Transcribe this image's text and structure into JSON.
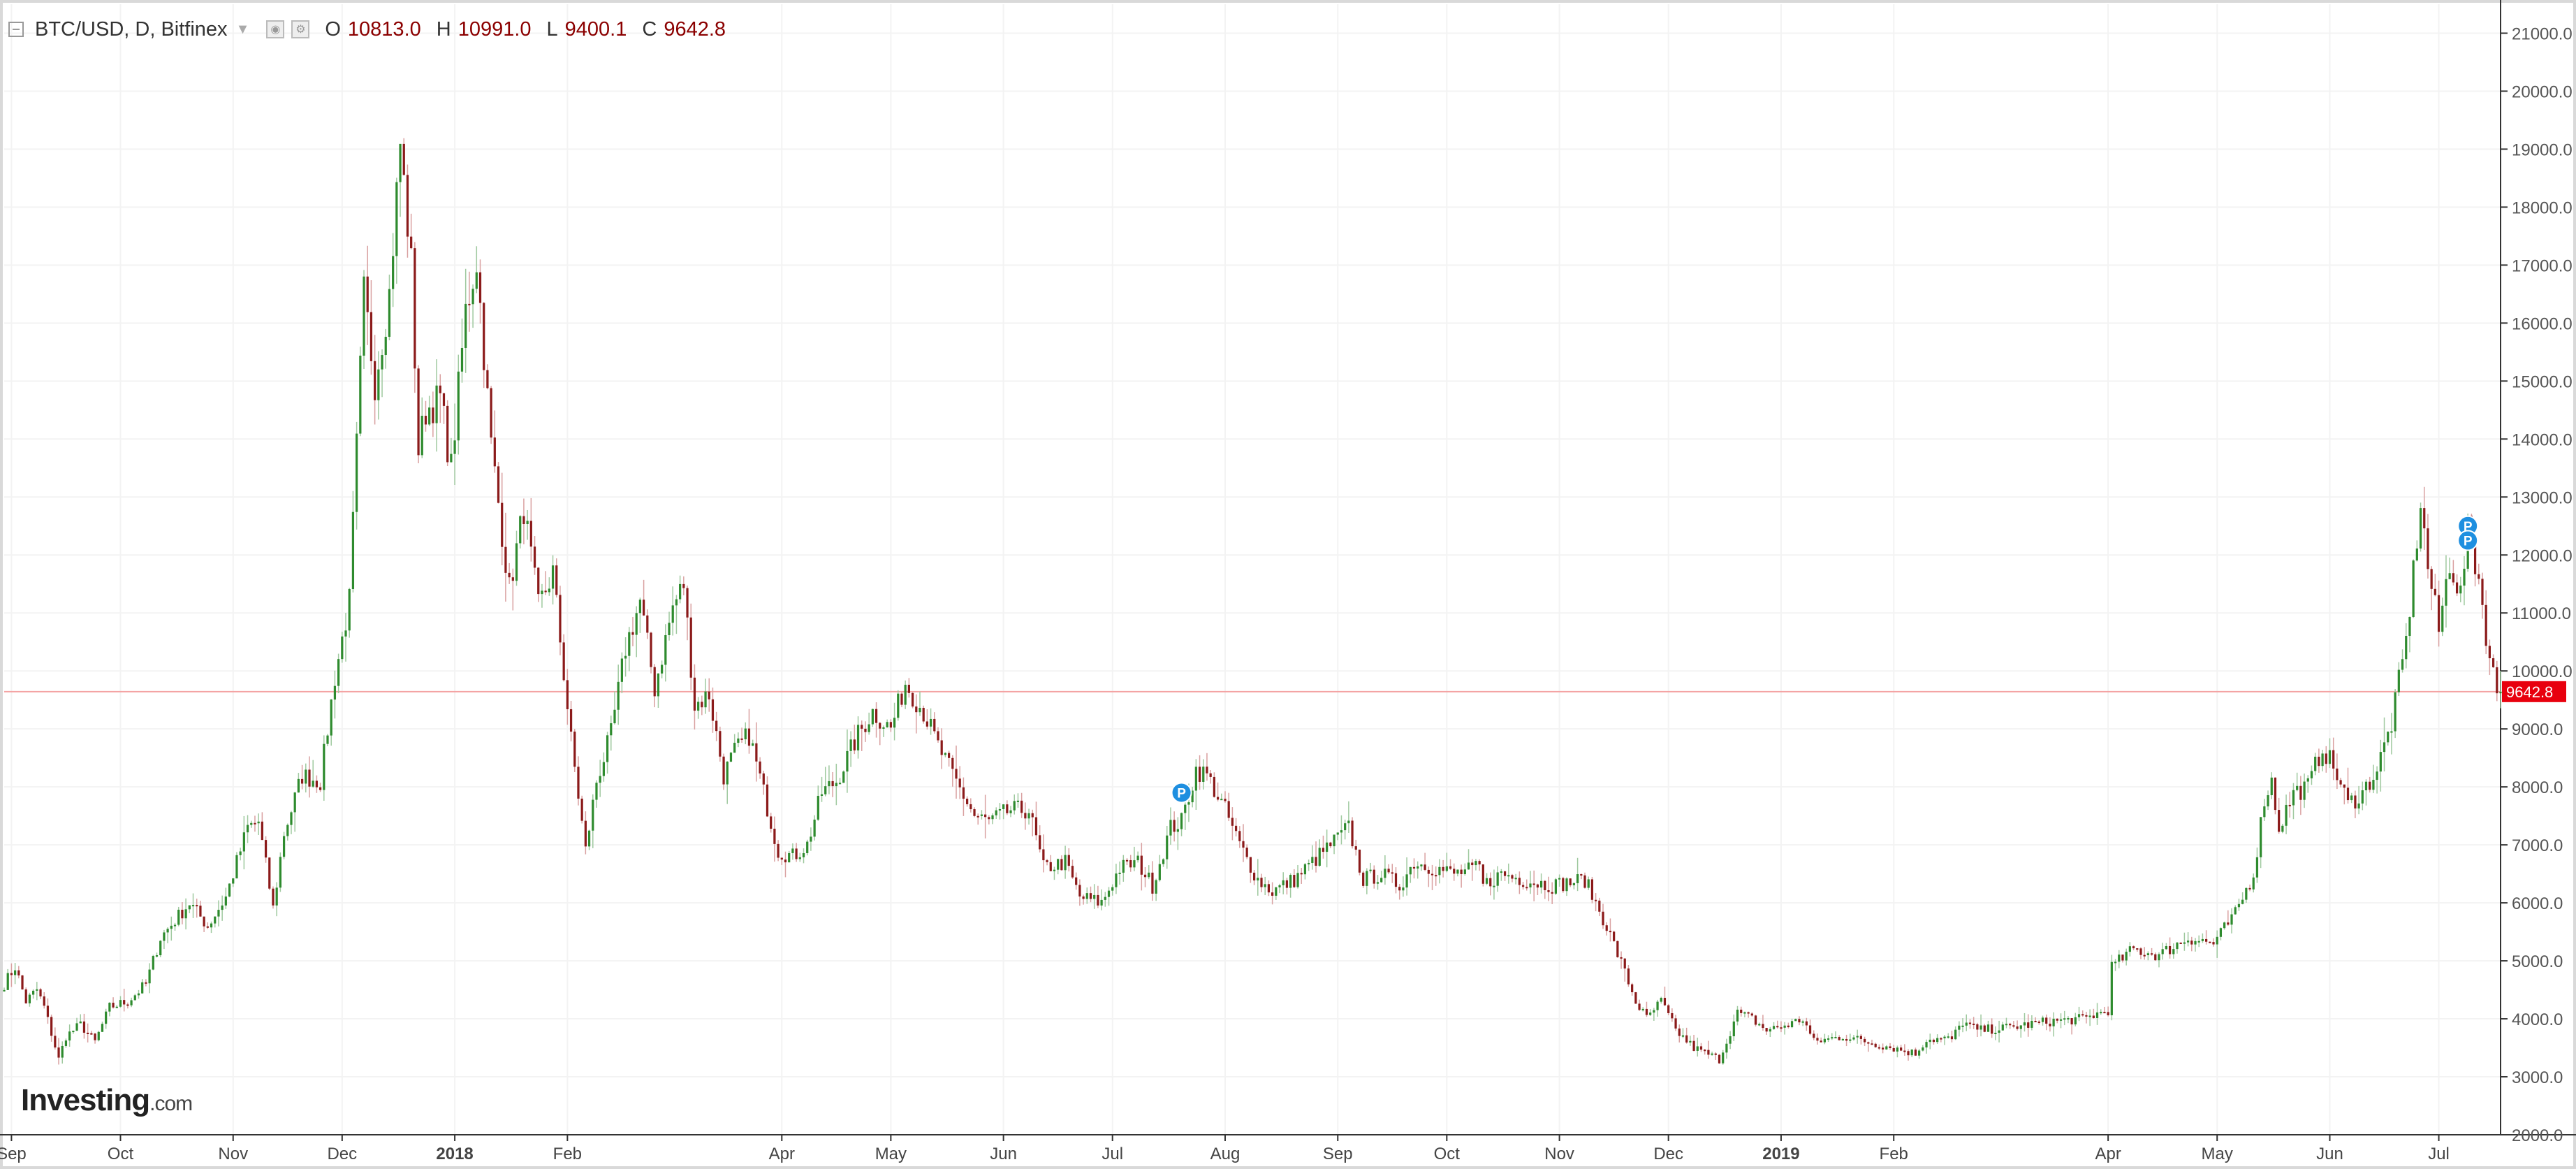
{
  "header": {
    "symbol": "BTC/USD, D, Bitfinex",
    "open_key": "O",
    "open": "10813.0",
    "high_key": "H",
    "high": "10991.0",
    "low_key": "L",
    "low": "9400.1",
    "close_key": "C",
    "close": "9642.8"
  },
  "logo": {
    "brand": "Investing",
    "suffix": ".com"
  },
  "colors": {
    "up": "#2e8b2e",
    "down": "#8b1a1a",
    "price_line": "#f4a3a3",
    "price_label_bg": "#e8000e",
    "grid": "#f3f3f3",
    "axis": "#555555",
    "marker": "#1e8fe0"
  },
  "chart_data": {
    "type": "candlestick",
    "title": "BTC/USD, D, Bitfinex",
    "ylim": [
      2000,
      21500
    ],
    "y_ticks": [
      "2000.0",
      "3000.0",
      "4000.0",
      "5000.0",
      "6000.0",
      "7000.0",
      "8000.0",
      "9000.0",
      "10000.0",
      "11000.0",
      "12000.0",
      "13000.0",
      "14000.0",
      "15000.0",
      "16000.0",
      "17000.0",
      "18000.0",
      "19000.0",
      "20000.0",
      "21000.0"
    ],
    "x_ticks": [
      {
        "label": "Sep",
        "x": "2017-09-01",
        "bold": false
      },
      {
        "label": "Oct",
        "x": "2017-10-01",
        "bold": false
      },
      {
        "label": "Nov",
        "x": "2017-11-01",
        "bold": false
      },
      {
        "label": "Dec",
        "x": "2017-12-01",
        "bold": false
      },
      {
        "label": "2018",
        "x": "2018-01-01",
        "bold": true
      },
      {
        "label": "Feb",
        "x": "2018-02-01",
        "bold": false
      },
      {
        "label": "Apr",
        "x": "2018-04-01",
        "bold": false
      },
      {
        "label": "May",
        "x": "2018-05-01",
        "bold": false
      },
      {
        "label": "Jun",
        "x": "2018-06-01",
        "bold": false
      },
      {
        "label": "Jul",
        "x": "2018-07-01",
        "bold": false
      },
      {
        "label": "Aug",
        "x": "2018-08-01",
        "bold": false
      },
      {
        "label": "Sep",
        "x": "2018-09-01",
        "bold": false
      },
      {
        "label": "Oct",
        "x": "2018-10-01",
        "bold": false
      },
      {
        "label": "Nov",
        "x": "2018-11-01",
        "bold": false
      },
      {
        "label": "Dec",
        "x": "2018-12-01",
        "bold": false
      },
      {
        "label": "2019",
        "x": "2019-01-01",
        "bold": true
      },
      {
        "label": "Feb",
        "x": "2019-02-01",
        "bold": false
      },
      {
        "label": "Apr",
        "x": "2019-04-01",
        "bold": false
      },
      {
        "label": "May",
        "x": "2019-05-01",
        "bold": false
      },
      {
        "label": "Jun",
        "x": "2019-06-01",
        "bold": false
      },
      {
        "label": "Jul",
        "x": "2019-07-01",
        "bold": false
      }
    ],
    "x_range": [
      "2017-08-30",
      "2019-07-18"
    ],
    "last_price": 9642.8,
    "last_price_label": "9642.8",
    "markers": [
      {
        "label": "P",
        "date": "2018-07-20",
        "price": 7900
      },
      {
        "label": "P",
        "date": "2019-07-09",
        "price": 12500
      },
      {
        "label": "P",
        "date": "2019-07-09",
        "price": 12250
      }
    ],
    "price_path": [
      [
        "2017-08-30",
        4600
      ],
      [
        "2017-09-02",
        4900
      ],
      [
        "2017-09-05",
        4300
      ],
      [
        "2017-09-08",
        4500
      ],
      [
        "2017-09-10",
        4200
      ],
      [
        "2017-09-14",
        3300
      ],
      [
        "2017-09-16",
        3700
      ],
      [
        "2017-09-20",
        3900
      ],
      [
        "2017-09-24",
        3600
      ],
      [
        "2017-09-28",
        4200
      ],
      [
        "2017-10-03",
        4300
      ],
      [
        "2017-10-08",
        4600
      ],
      [
        "2017-10-12",
        5400
      ],
      [
        "2017-10-16",
        5700
      ],
      [
        "2017-10-20",
        6000
      ],
      [
        "2017-10-25",
        5600
      ],
      [
        "2017-10-30",
        6100
      ],
      [
        "2017-11-05",
        7300
      ],
      [
        "2017-11-08",
        7400
      ],
      [
        "2017-11-12",
        5900
      ],
      [
        "2017-11-15",
        7200
      ],
      [
        "2017-11-20",
        8200
      ],
      [
        "2017-11-25",
        8100
      ],
      [
        "2017-11-29",
        9900
      ],
      [
        "2017-12-03",
        11200
      ],
      [
        "2017-12-07",
        16500
      ],
      [
        "2017-12-10",
        15000
      ],
      [
        "2017-12-14",
        16500
      ],
      [
        "2017-12-17",
        19100
      ],
      [
        "2017-12-20",
        17000
      ],
      [
        "2017-12-22",
        13800
      ],
      [
        "2017-12-24",
        14500
      ],
      [
        "2017-12-28",
        14700
      ],
      [
        "2017-12-31",
        13500
      ],
      [
        "2018-01-04",
        16200
      ],
      [
        "2018-01-07",
        17100
      ],
      [
        "2018-01-11",
        13900
      ],
      [
        "2018-01-16",
        11400
      ],
      [
        "2018-01-20",
        12800
      ],
      [
        "2018-01-24",
        11100
      ],
      [
        "2018-01-28",
        11700
      ],
      [
        "2018-02-02",
        8800
      ],
      [
        "2018-02-06",
        6900
      ],
      [
        "2018-02-09",
        8100
      ],
      [
        "2018-02-13",
        8900
      ],
      [
        "2018-02-17",
        10400
      ],
      [
        "2018-02-21",
        11200
      ],
      [
        "2018-02-25",
        9700
      ],
      [
        "2018-03-02",
        11100
      ],
      [
        "2018-03-05",
        11500
      ],
      [
        "2018-03-08",
        9400
      ],
      [
        "2018-03-12",
        9600
      ],
      [
        "2018-03-16",
        8200
      ],
      [
        "2018-03-19",
        8600
      ],
      [
        "2018-03-23",
        8900
      ],
      [
        "2018-03-27",
        7900
      ],
      [
        "2018-03-31",
        6900
      ],
      [
        "2018-04-04",
        6800
      ],
      [
        "2018-04-08",
        7000
      ],
      [
        "2018-04-12",
        7900
      ],
      [
        "2018-04-16",
        8100
      ],
      [
        "2018-04-22",
        8900
      ],
      [
        "2018-04-26",
        9300
      ],
      [
        "2018-05-01",
        9000
      ],
      [
        "2018-05-05",
        9800
      ],
      [
        "2018-05-10",
        9300
      ],
      [
        "2018-05-14",
        8700
      ],
      [
        "2018-05-18",
        8200
      ],
      [
        "2018-05-24",
        7500
      ],
      [
        "2018-05-28",
        7400
      ],
      [
        "2018-06-03",
        7600
      ],
      [
        "2018-06-08",
        7600
      ],
      [
        "2018-06-12",
        6600
      ],
      [
        "2018-06-18",
        6700
      ],
      [
        "2018-06-22",
        6100
      ],
      [
        "2018-06-28",
        6000
      ],
      [
        "2018-07-03",
        6600
      ],
      [
        "2018-07-08",
        6700
      ],
      [
        "2018-07-12",
        6300
      ],
      [
        "2018-07-17",
        7300
      ],
      [
        "2018-07-20",
        7400
      ],
      [
        "2018-07-24",
        8300
      ],
      [
        "2018-07-27",
        8200
      ],
      [
        "2018-08-01",
        7600
      ],
      [
        "2018-08-05",
        7000
      ],
      [
        "2018-08-10",
        6400
      ],
      [
        "2018-08-14",
        6200
      ],
      [
        "2018-08-20",
        6400
      ],
      [
        "2018-08-25",
        6700
      ],
      [
        "2018-08-30",
        7000
      ],
      [
        "2018-09-04",
        7300
      ],
      [
        "2018-09-08",
        6400
      ],
      [
        "2018-09-13",
        6500
      ],
      [
        "2018-09-18",
        6300
      ],
      [
        "2018-09-22",
        6700
      ],
      [
        "2018-09-28",
        6600
      ],
      [
        "2018-10-03",
        6500
      ],
      [
        "2018-10-10",
        6600
      ],
      [
        "2018-10-11",
        6300
      ],
      [
        "2018-10-16",
        6500
      ],
      [
        "2018-10-22",
        6400
      ],
      [
        "2018-10-30",
        6300
      ],
      [
        "2018-11-08",
        6400
      ],
      [
        "2018-11-14",
        5600
      ],
      [
        "2018-11-19",
        4800
      ],
      [
        "2018-11-22",
        4300
      ],
      [
        "2018-11-25",
        4000
      ],
      [
        "2018-11-29",
        4300
      ],
      [
        "2018-12-03",
        3800
      ],
      [
        "2018-12-08",
        3500
      ],
      [
        "2018-12-15",
        3300
      ],
      [
        "2018-12-20",
        4100
      ],
      [
        "2018-12-24",
        4000
      ],
      [
        "2018-12-28",
        3800
      ],
      [
        "2019-01-03",
        3900
      ],
      [
        "2019-01-07",
        4000
      ],
      [
        "2019-01-10",
        3600
      ],
      [
        "2019-01-18",
        3700
      ],
      [
        "2019-01-25",
        3600
      ],
      [
        "2019-02-01",
        3500
      ],
      [
        "2019-02-07",
        3400
      ],
      [
        "2019-02-10",
        3650
      ],
      [
        "2019-02-17",
        3650
      ],
      [
        "2019-02-20",
        3950
      ],
      [
        "2019-02-24",
        3800
      ],
      [
        "2019-03-05",
        3850
      ],
      [
        "2019-03-15",
        3950
      ],
      [
        "2019-03-25",
        4000
      ],
      [
        "2019-04-01",
        4150
      ],
      [
        "2019-04-02",
        4900
      ],
      [
        "2019-04-08",
        5200
      ],
      [
        "2019-04-15",
        5100
      ],
      [
        "2019-04-23",
        5400
      ],
      [
        "2019-04-30",
        5300
      ],
      [
        "2019-05-06",
        5800
      ],
      [
        "2019-05-11",
        6500
      ],
      [
        "2019-05-14",
        7800
      ],
      [
        "2019-05-16",
        8100
      ],
      [
        "2019-05-18",
        7300
      ],
      [
        "2019-05-22",
        7900
      ],
      [
        "2019-05-26",
        8000
      ],
      [
        "2019-05-30",
        8700
      ],
      [
        "2019-06-03",
        8200
      ],
      [
        "2019-06-06",
        7700
      ],
      [
        "2019-06-10",
        7900
      ],
      [
        "2019-06-14",
        8300
      ],
      [
        "2019-06-18",
        9100
      ],
      [
        "2019-06-22",
        10500
      ],
      [
        "2019-06-26",
        12900
      ],
      [
        "2019-06-28",
        11800
      ],
      [
        "2019-07-01",
        10700
      ],
      [
        "2019-07-04",
        11900
      ],
      [
        "2019-07-07",
        11300
      ],
      [
        "2019-07-09",
        12400
      ],
      [
        "2019-07-12",
        11600
      ],
      [
        "2019-07-15",
        10200
      ],
      [
        "2019-07-17",
        9642.8
      ]
    ]
  }
}
